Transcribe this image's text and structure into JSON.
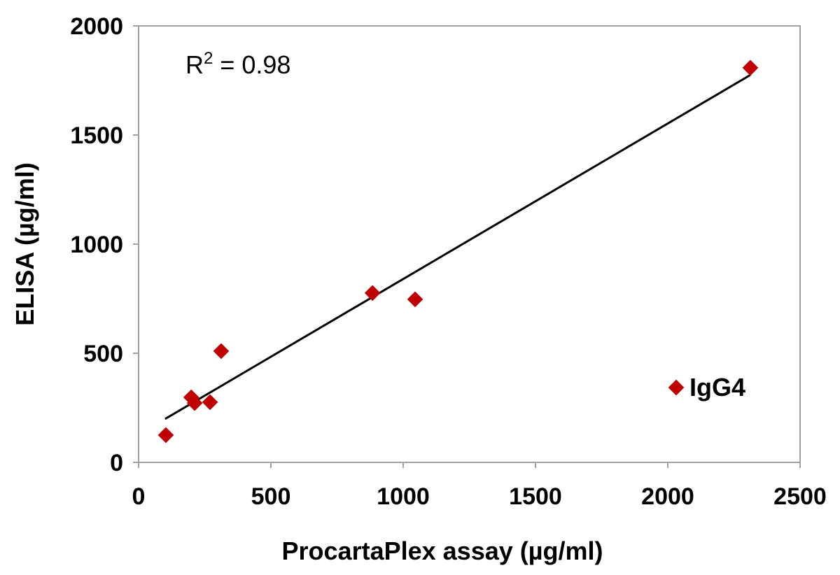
{
  "chart_data": {
    "type": "scatter",
    "title": "",
    "xlabel": "ProcartaPlex assay (µg/ml)",
    "ylabel": "ELISA (µg/ml)",
    "xlim": [
      0,
      2500
    ],
    "ylim": [
      0,
      2000
    ],
    "xticks": [
      0,
      500,
      1000,
      1500,
      2000,
      2500
    ],
    "yticks": [
      0,
      500,
      1000,
      1500,
      2000
    ],
    "grid": false,
    "legend_position": "right",
    "series": [
      {
        "name": "IgG4",
        "color": "#c00000",
        "marker": "diamond",
        "points": [
          {
            "x": 103,
            "y": 125
          },
          {
            "x": 199,
            "y": 298
          },
          {
            "x": 212,
            "y": 272
          },
          {
            "x": 270,
            "y": 276
          },
          {
            "x": 312,
            "y": 510
          },
          {
            "x": 884,
            "y": 776
          },
          {
            "x": 1045,
            "y": 747
          },
          {
            "x": 2312,
            "y": 1808
          }
        ]
      }
    ],
    "trendline": {
      "type": "linear",
      "color": "#000000",
      "x": [
        100,
        2312
      ],
      "y": [
        199,
        1775
      ]
    },
    "annotation": {
      "prefix": "R",
      "superscript": "2",
      "text": " = 0.98"
    }
  }
}
